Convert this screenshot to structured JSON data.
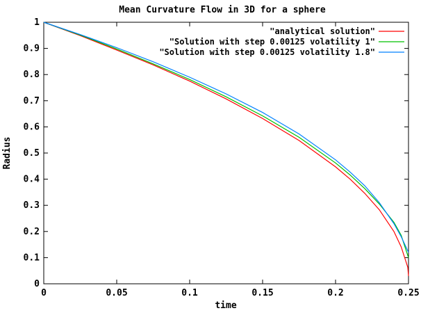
{
  "chart_data": {
    "type": "line",
    "title": "Mean Curvature Flow in  3D for a sphere",
    "xlabel": "time",
    "ylabel": "Radius",
    "xlim": [
      0,
      0.25
    ],
    "ylim": [
      0,
      1
    ],
    "x_ticks": [
      "0",
      "0.05",
      "0.1",
      "0.15",
      "0.2",
      "0.25"
    ],
    "y_ticks": [
      "0",
      "0.1",
      "0.2",
      "0.3",
      "0.4",
      "0.5",
      "0.6",
      "0.7",
      "0.8",
      "0.9",
      "1"
    ],
    "grid": false,
    "legend_position": "top-right",
    "series": [
      {
        "name": "\"analytical solution\"",
        "color": "#ff0000",
        "x": [
          0,
          0.025,
          0.05,
          0.075,
          0.1,
          0.125,
          0.15,
          0.175,
          0.2,
          0.21,
          0.22,
          0.23,
          0.24,
          0.245,
          0.248,
          0.2495,
          0.25
        ],
        "y": [
          1.0,
          0.949,
          0.894,
          0.837,
          0.775,
          0.707,
          0.632,
          0.548,
          0.447,
          0.4,
          0.346,
          0.283,
          0.2,
          0.141,
          0.089,
          0.063,
          0.03
        ]
      },
      {
        "name": "\"Solution with step 0.00125 volatility 1\"",
        "color": "#00c000",
        "x": [
          0,
          0.025,
          0.05,
          0.075,
          0.1,
          0.125,
          0.15,
          0.175,
          0.2,
          0.21,
          0.22,
          0.23,
          0.24,
          0.245,
          0.25
        ],
        "y": [
          1.0,
          0.951,
          0.898,
          0.841,
          0.781,
          0.715,
          0.642,
          0.56,
          0.462,
          0.416,
          0.364,
          0.305,
          0.235,
          0.185,
          0.1
        ]
      },
      {
        "name": "\"Solution with step 0.00125 volatility 1.8\"",
        "color": "#0080ff",
        "x": [
          0,
          0.025,
          0.05,
          0.075,
          0.1,
          0.125,
          0.15,
          0.175,
          0.2,
          0.21,
          0.22,
          0.23,
          0.235,
          0.24,
          0.245,
          0.25
        ],
        "y": [
          1.0,
          0.953,
          0.903,
          0.849,
          0.79,
          0.726,
          0.655,
          0.573,
          0.474,
          0.427,
          0.375,
          0.31,
          0.27,
          0.23,
          0.18,
          0.12
        ]
      }
    ]
  }
}
